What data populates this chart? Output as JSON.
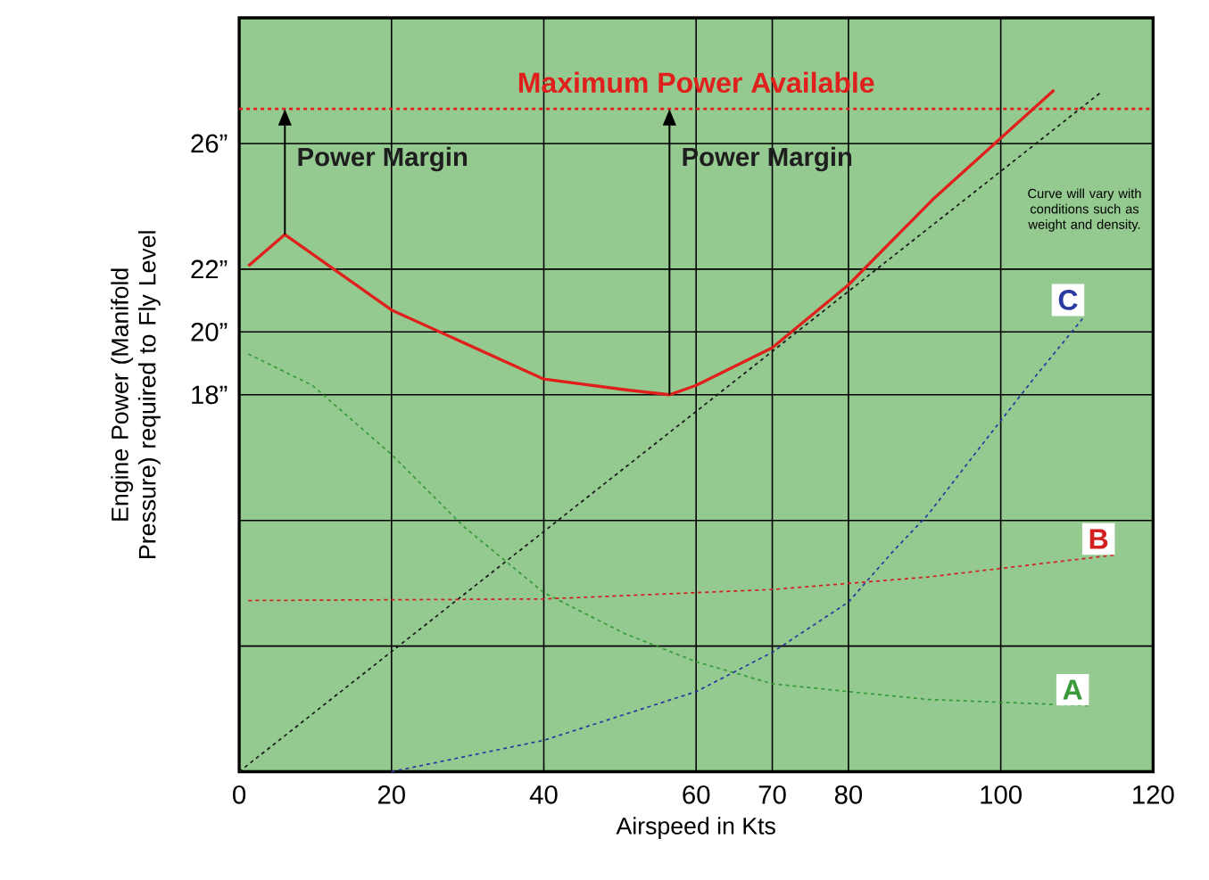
{
  "chart_data": {
    "type": "line",
    "xlabel": "Airspeed in Kts",
    "ylabel": "Engine Power (Manifold Pressure) required to Fly Level",
    "xlim": [
      0,
      120
    ],
    "ylim": [
      6,
      30
    ],
    "xticks": [
      0,
      20,
      40,
      60,
      70,
      80,
      100,
      120
    ],
    "yticks": [
      {
        "value": 6,
        "label": null
      },
      {
        "value": 10,
        "label": null
      },
      {
        "value": 14,
        "label": null
      },
      {
        "value": 18,
        "label": "18”"
      },
      {
        "value": 20,
        "label": "20”"
      },
      {
        "value": 22,
        "label": "22”"
      },
      {
        "value": 26,
        "label": "26”"
      },
      {
        "value": 30,
        "label": null
      }
    ],
    "grid": true,
    "series": [
      {
        "color": "#e0201c",
        "line_style": "solid",
        "x": [
          1.2,
          6,
          20,
          40,
          51,
          56.5,
          60,
          70,
          80,
          91,
          107
        ],
        "values": [
          22.1,
          23.1,
          20.7,
          18.5,
          18.15,
          18.0,
          18.3,
          19.5,
          21.5,
          24.2,
          27.7
        ]
      },
      {
        "color": "#1a1a1a",
        "line_style": "dashed",
        "x": [
          0,
          113
        ],
        "values": [
          6,
          27.6
        ]
      },
      {
        "name": "A",
        "color": "#3a9a3a",
        "line_style": "dashed",
        "x": [
          1.2,
          9.6,
          20,
          29.5,
          40,
          50.6,
          60,
          70,
          80,
          90.5,
          111.6
        ],
        "values": [
          19.3,
          18.3,
          16.1,
          13.8,
          11.7,
          10.4,
          9.5,
          8.8,
          8.55,
          8.3,
          8.1
        ]
      },
      {
        "name": "B",
        "color": "#d42020",
        "line_style": "dashed",
        "x": [
          1.2,
          40,
          70,
          90.5,
          115
        ],
        "values": [
          11.45,
          11.5,
          11.8,
          12.2,
          12.9
        ]
      },
      {
        "name": "C",
        "color": "#2a3aa0",
        "line_style": "dashed",
        "x": [
          20,
          40,
          60,
          70,
          80,
          85.8,
          90.5,
          97.5,
          104.6,
          111
        ],
        "values": [
          6.0,
          7.0,
          8.55,
          9.8,
          11.4,
          13.0,
          14.2,
          16.4,
          18.6,
          20.5
        ]
      }
    ],
    "ref_lines": [
      {
        "axis": "y",
        "value": 27.1,
        "label": "Maximum Power Available",
        "color": "#e0201c",
        "line_style": "dashed"
      }
    ],
    "annotations": [
      {
        "text": "Power Margin",
        "x": 6,
        "y": 23.1
      },
      {
        "text": "Power Margin",
        "x": 56.5,
        "y": 18.0
      },
      "Curve will vary with conditions such as weight and density."
    ]
  }
}
